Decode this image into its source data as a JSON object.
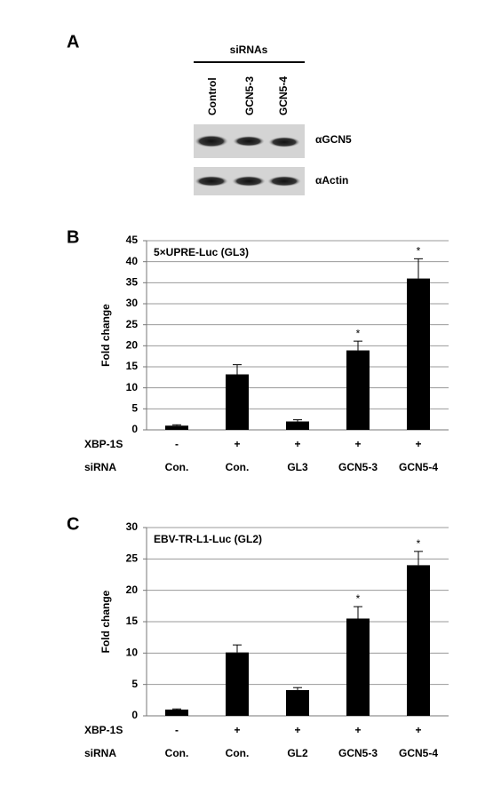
{
  "panel_a": {
    "label": "A",
    "header": "siRNAs",
    "lanes": [
      "Control",
      "GCN5-3",
      "GCN5-4"
    ],
    "blots": [
      "αGCN5",
      "αActin"
    ]
  },
  "chart_data": [
    {
      "type": "bar",
      "panel_label": "B",
      "title": "5×UPRE-Luc (GL3)",
      "y_label": "Fold change",
      "categories_label": "siRNA",
      "categories": [
        "Con.",
        "Con.",
        "GL3",
        "GCN5-3",
        "GCN5-4"
      ],
      "xbp1s": {
        "label": "XBP-1S",
        "values": [
          "-",
          "+",
          "+",
          "+",
          "+"
        ]
      },
      "values": [
        1,
        13.2,
        2,
        18.9,
        36
      ],
      "errors": [
        0.2,
        2.3,
        0.4,
        2.2,
        4.7
      ],
      "value_annotations": [
        null,
        null,
        null,
        "*",
        "*"
      ],
      "color": "#000000",
      "ylim": [
        0,
        45
      ],
      "yticks": [
        0,
        5,
        10,
        15,
        20,
        25,
        30,
        35,
        40,
        45
      ],
      "grid": true
    },
    {
      "type": "bar",
      "panel_label": "C",
      "title": "EBV-TR-L1-Luc (GL2)",
      "y_label": "Fold change",
      "categories_label": "siRNA",
      "categories": [
        "Con.",
        "Con.",
        "GL2",
        "GCN5-3",
        "GCN5-4"
      ],
      "xbp1s": {
        "label": "XBP-1S",
        "values": [
          "-",
          "+",
          "+",
          "+",
          "+"
        ]
      },
      "values": [
        1,
        10.1,
        4.1,
        15.5,
        24
      ],
      "errors": [
        0.1,
        1.2,
        0.4,
        1.9,
        2.2
      ],
      "value_annotations": [
        null,
        null,
        null,
        "*",
        "*"
      ],
      "color": "#000000",
      "ylim": [
        0,
        30
      ],
      "yticks": [
        0,
        5,
        10,
        15,
        20,
        25,
        30
      ],
      "grid": true
    }
  ]
}
